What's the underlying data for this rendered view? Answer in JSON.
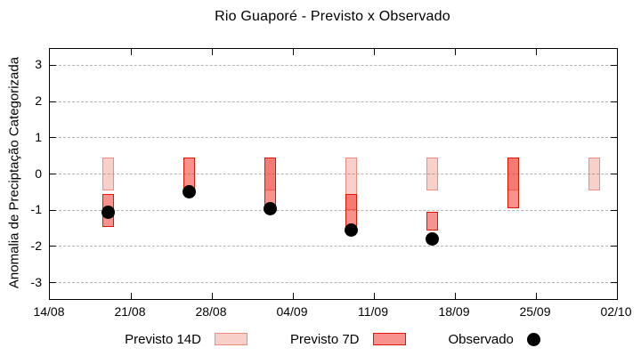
{
  "chart_data": {
    "type": "bar",
    "title": "Rio Guaporé - Previsto x Observado",
    "ylabel": "Anomalia de Preciptação Categorizada",
    "xlabel": "",
    "ylim": [
      -3.45,
      3.45
    ],
    "xlim_days": [
      0,
      49
    ],
    "grid": true,
    "legend_position": "bottom",
    "y_ticks": [
      3,
      2,
      1,
      0,
      -1,
      -2,
      -3
    ],
    "x_ticks": [
      {
        "label": "14/08",
        "day": 0
      },
      {
        "label": "21/08",
        "day": 7
      },
      {
        "label": "28/08",
        "day": 14
      },
      {
        "label": "04/09",
        "day": 21
      },
      {
        "label": "11/09",
        "day": 28
      },
      {
        "label": "18/09",
        "day": 35
      },
      {
        "label": "25/09",
        "day": 42
      },
      {
        "label": "02/10",
        "day": 49
      }
    ],
    "legend": [
      {
        "label": "Previsto 14D",
        "key": "previsto_14d"
      },
      {
        "label": "Previsto 7D",
        "key": "previsto_7d"
      },
      {
        "label": "Observado",
        "key": "observado"
      }
    ],
    "points": [
      {
        "date": "19/08",
        "day": 5,
        "previsto_14d": [
          -0.45,
          0.45
        ],
        "previsto_7d": [
          -1.45,
          -0.55
        ],
        "observado": -1.05
      },
      {
        "date": "26/08",
        "day": 12,
        "previsto_14d": null,
        "previsto_7d": [
          -0.45,
          0.45
        ],
        "observado": -0.5
      },
      {
        "date": "02/09",
        "day": 19,
        "previsto_14d": [
          -0.45,
          0.45
        ],
        "previsto_7d": [
          -1.0,
          0.45
        ],
        "observado": -0.95
      },
      {
        "date": "09/09",
        "day": 26,
        "previsto_14d": [
          -1.0,
          0.45
        ],
        "previsto_7d": [
          -1.45,
          -0.55
        ],
        "observado": -1.55
      },
      {
        "date": "16/09",
        "day": 33,
        "previsto_14d": [
          -0.45,
          0.45
        ],
        "previsto_7d": [
          -1.55,
          -1.05
        ],
        "observado": -1.8
      },
      {
        "date": "23/09",
        "day": 40,
        "previsto_14d": [
          -0.45,
          0.45
        ],
        "previsto_7d": [
          -0.95,
          0.45
        ],
        "observado": null
      },
      {
        "date": "30/09",
        "day": 47,
        "previsto_14d": [
          -0.45,
          0.45
        ],
        "previsto_7d": null,
        "observado": null
      }
    ],
    "colors": {
      "p14_fill": "rgba(232,64,44,0.25)",
      "p14_border": "#f28b7d",
      "p7_fill": "rgba(240,40,25,0.5)",
      "p7_border": "#e41400",
      "observed": "#000000",
      "grid": "#b3b3b3",
      "axis": "#000000"
    }
  }
}
